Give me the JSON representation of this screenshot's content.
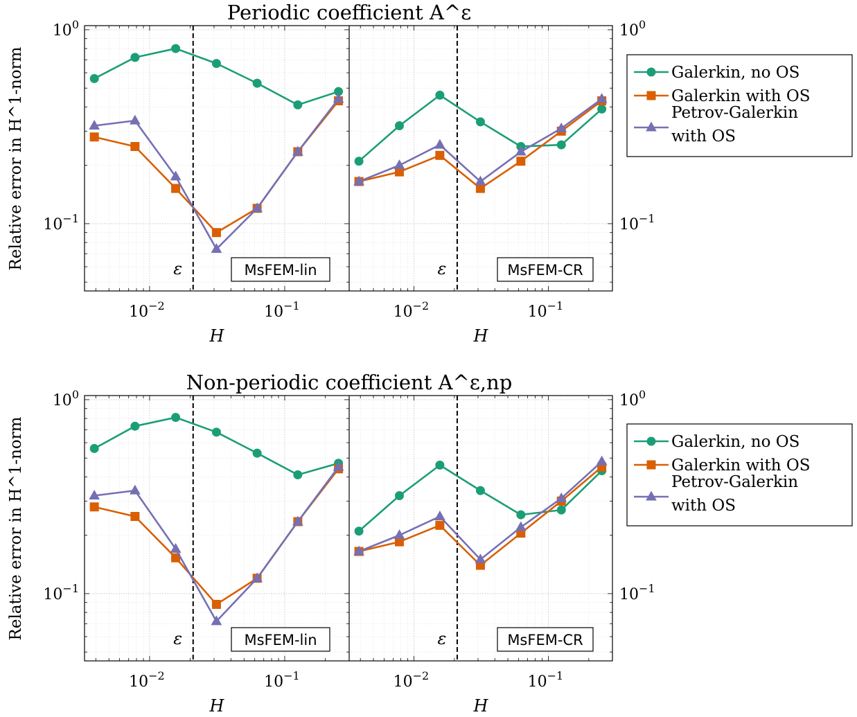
{
  "colors": {
    "galerkin_no_os": "#1b9e77",
    "galerkin_os": "#d95f02",
    "petrov_galerkin_os": "#7570b3"
  },
  "legend": {
    "placement": "right",
    "entries": [
      "Galerkin, no OS",
      "Galerkin with OS",
      "Petrov-Galerkin",
      "with OS"
    ]
  },
  "chart_data": [
    {
      "type": "line",
      "title": "Periodic coefficient A^ε",
      "ylabel": "Relative error in H^1-norm",
      "yscale": "log",
      "ylim": [
        0.045,
        1.05
      ],
      "yticks": [
        0.1,
        1
      ],
      "grid": true,
      "panels": [
        {
          "label": "MsFEM-lin",
          "xlabel": "H",
          "xscale": "log",
          "xlim": [
            0.0033,
            0.3
          ],
          "xticks": [
            0.01,
            0.1
          ],
          "epsilon_line": 0.021,
          "epsilon_label": "ε",
          "x": [
            0.0039,
            0.0078,
            0.0156,
            0.03125,
            0.0625,
            0.125,
            0.25
          ],
          "series": [
            {
              "name": "Galerkin, no OS",
              "marker": "circle",
              "values": [
                0.56,
                0.72,
                0.8,
                0.67,
                0.53,
                0.41,
                0.48
              ]
            },
            {
              "name": "Galerkin with OS",
              "marker": "square",
              "values": [
                0.28,
                0.25,
                0.152,
                0.09,
                0.12,
                0.235,
                0.43
              ]
            },
            {
              "name": "Petrov-Galerkin with OS",
              "marker": "triangle",
              "values": [
                0.32,
                0.34,
                0.175,
                0.074,
                0.12,
                0.235,
                0.44
              ]
            }
          ]
        },
        {
          "label": "MsFEM-CR",
          "xlabel": "H",
          "xscale": "log",
          "xlim": [
            0.0033,
            0.3
          ],
          "xticks": [
            0.01,
            0.1
          ],
          "epsilon_line": 0.021,
          "epsilon_label": "ε",
          "x": [
            0.0039,
            0.0078,
            0.0156,
            0.03125,
            0.0625,
            0.125,
            0.25
          ],
          "series": [
            {
              "name": "Galerkin, no OS",
              "marker": "circle",
              "values": [
                0.21,
                0.32,
                0.46,
                0.335,
                0.25,
                0.255,
                0.39
              ]
            },
            {
              "name": "Galerkin with OS",
              "marker": "square",
              "values": [
                0.165,
                0.185,
                0.225,
                0.152,
                0.21,
                0.3,
                0.43
              ]
            },
            {
              "name": "Petrov-Galerkin with OS",
              "marker": "triangle",
              "values": [
                0.165,
                0.2,
                0.255,
                0.165,
                0.235,
                0.31,
                0.44
              ]
            }
          ]
        }
      ]
    },
    {
      "type": "line",
      "title": "Non-periodic coefficient A^ε,np",
      "ylabel": "Relative error in H^1-norm",
      "yscale": "log",
      "ylim": [
        0.045,
        1.05
      ],
      "yticks": [
        0.1,
        1
      ],
      "grid": true,
      "panels": [
        {
          "label": "MsFEM-lin",
          "xlabel": "H",
          "xscale": "log",
          "xlim": [
            0.0033,
            0.3
          ],
          "xticks": [
            0.01,
            0.1
          ],
          "epsilon_line": 0.021,
          "epsilon_label": "ε",
          "x": [
            0.0039,
            0.0078,
            0.0156,
            0.03125,
            0.0625,
            0.125,
            0.25
          ],
          "series": [
            {
              "name": "Galerkin, no OS",
              "marker": "circle",
              "values": [
                0.56,
                0.73,
                0.81,
                0.68,
                0.53,
                0.41,
                0.47
              ]
            },
            {
              "name": "Galerkin with OS",
              "marker": "square",
              "values": [
                0.28,
                0.25,
                0.153,
                0.088,
                0.12,
                0.235,
                0.44
              ]
            },
            {
              "name": "Petrov-Galerkin with OS",
              "marker": "triangle",
              "values": [
                0.32,
                0.34,
                0.17,
                0.072,
                0.12,
                0.235,
                0.45
              ]
            }
          ]
        },
        {
          "label": "MsFEM-CR",
          "xlabel": "H",
          "xscale": "log",
          "xlim": [
            0.0033,
            0.3
          ],
          "xticks": [
            0.01,
            0.1
          ],
          "epsilon_line": 0.021,
          "epsilon_label": "ε",
          "x": [
            0.0039,
            0.0078,
            0.0156,
            0.03125,
            0.0625,
            0.125,
            0.25
          ],
          "series": [
            {
              "name": "Galerkin, no OS",
              "marker": "circle",
              "values": [
                0.21,
                0.32,
                0.46,
                0.34,
                0.255,
                0.27,
                0.43
              ]
            },
            {
              "name": "Galerkin with OS",
              "marker": "square",
              "values": [
                0.165,
                0.185,
                0.225,
                0.14,
                0.205,
                0.3,
                0.45
              ]
            },
            {
              "name": "Petrov-Galerkin with OS",
              "marker": "triangle",
              "values": [
                0.165,
                0.2,
                0.25,
                0.15,
                0.22,
                0.31,
                0.48
              ]
            }
          ]
        }
      ]
    }
  ]
}
